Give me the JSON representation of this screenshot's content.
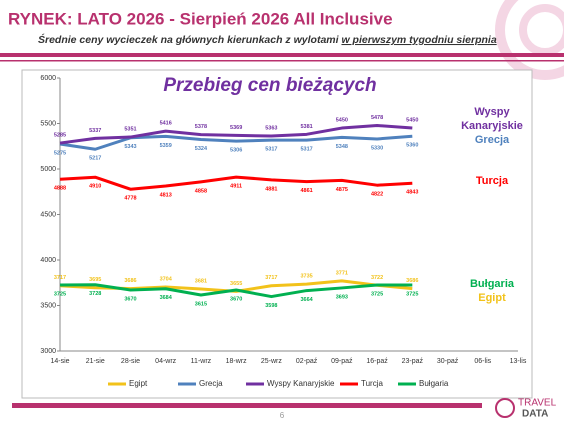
{
  "header": {
    "title": "RYNEK: LATO 2026 - Sierpień 2026 All Inclusive",
    "subtitle": "Średnie ceny wycieczek na głównych kierunkach  z wylotami",
    "subtitle_underlined": "w pierwszym tygodniu sierpnia"
  },
  "chart_data": {
    "type": "line",
    "title": "Przebieg cen bieżących",
    "categories": [
      "14-sie",
      "21-sie",
      "28-sie",
      "04-wrz",
      "11-wrz",
      "18-wrz",
      "25-wrz",
      "02-paź",
      "09-paź",
      "16-paź",
      "23-paź",
      "30-paź",
      "06-lis",
      "13-lis"
    ],
    "series": [
      {
        "name": "Egipt",
        "color": "#f2c21a",
        "values": [
          3717,
          3695,
          3686,
          3704,
          3681,
          3655,
          3717,
          3735,
          3771,
          3722,
          3686,
          null,
          null,
          null
        ]
      },
      {
        "name": "Grecja",
        "color": "#4f81bd",
        "values": [
          5275,
          5217,
          5343,
          5359,
          5324,
          5306,
          5317,
          5317,
          5348,
          5330,
          5360,
          null,
          null,
          null
        ]
      },
      {
        "name": "Wyspy Kanaryjskie",
        "color": "#7030a0",
        "values": [
          5285,
          5337,
          5351,
          5416,
          5378,
          5369,
          5363,
          5381,
          5450,
          5478,
          5450,
          null,
          null,
          null
        ]
      },
      {
        "name": "Turcja",
        "color": "#ff0000",
        "values": [
          4888,
          4910,
          4778,
          4813,
          4858,
          4911,
          4881,
          4861,
          4875,
          4822,
          4843,
          null,
          null,
          null
        ]
      },
      {
        "name": "Bułgaria",
        "color": "#00b050",
        "values": [
          3725,
          3728,
          3670,
          3684,
          3615,
          3670,
          3598,
          3664,
          3693,
          3725,
          3725,
          null,
          null,
          null
        ]
      }
    ],
    "annotations": [
      {
        "text": "Wyspy",
        "color": "#7030a0"
      },
      {
        "text": "Kanaryjskie",
        "color": "#7030a0"
      },
      {
        "text": "Grecja",
        "color": "#4f81bd"
      },
      {
        "text": "Turcja",
        "color": "#ff0000"
      },
      {
        "text": "Bułgaria",
        "color": "#00b050"
      },
      {
        "text": "Egipt",
        "color": "#f2c21a"
      }
    ],
    "ylim": [
      3000,
      6000
    ],
    "yticks": [
      3000,
      3500,
      4000,
      4500,
      5000,
      5500,
      6000
    ],
    "grid": false,
    "legend": "bottom"
  },
  "footer": {
    "page": "6",
    "logo_top": "TRAVEL",
    "logo_bottom": "DATA"
  }
}
